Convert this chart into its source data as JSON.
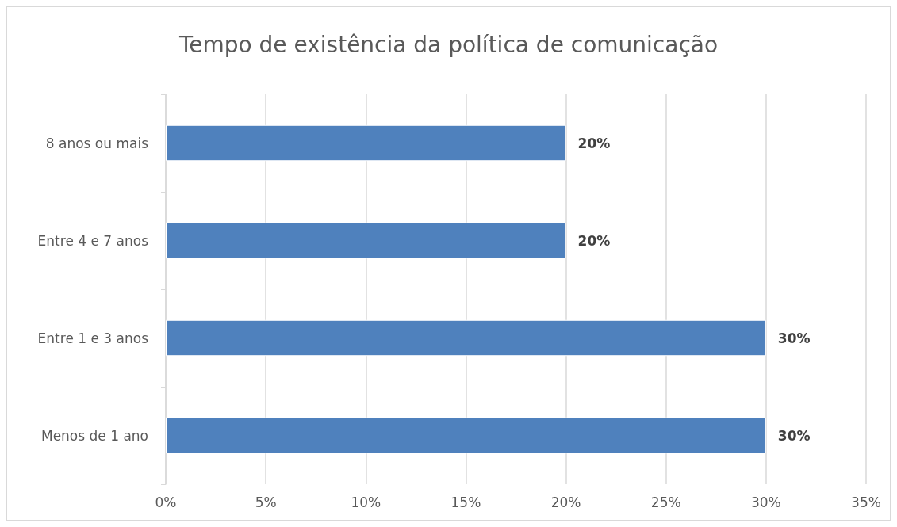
{
  "chart_data": {
    "type": "bar",
    "orientation": "horizontal",
    "title": "Tempo de existência da política de comunicação",
    "categories": [
      "8 anos ou mais",
      "Entre 4 e 7 anos",
      "Entre 1 e 3 anos",
      "Menos de 1 ano"
    ],
    "values": [
      20,
      20,
      30,
      30
    ],
    "color": "#4f81bd",
    "value_labels": [
      "20%",
      "20%",
      "30%",
      "30%"
    ],
    "xlim": [
      0,
      35
    ],
    "xticks": [
      {
        "value": 0,
        "label": "0%"
      },
      {
        "value": 5,
        "label": "5%"
      },
      {
        "value": 10,
        "label": "10%"
      },
      {
        "value": 15,
        "label": "15%"
      },
      {
        "value": 20,
        "label": "20%"
      },
      {
        "value": 25,
        "label": "25%"
      },
      {
        "value": 30,
        "label": "30%"
      },
      {
        "value": 35,
        "label": "35%"
      }
    ],
    "grid": "x"
  }
}
